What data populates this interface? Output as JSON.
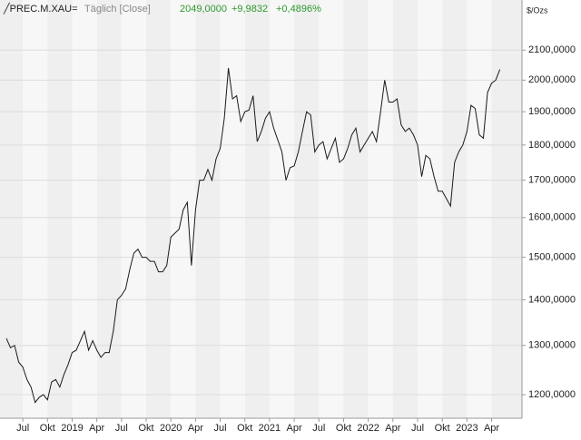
{
  "chart_data": {
    "type": "line",
    "header": {
      "symbol": "╱PREC.M.XAU=",
      "mode": "Täglich [Close]",
      "last": "2049,0000",
      "change": "+9,9832",
      "change_pct": "+0,4896%"
    },
    "unit": "$/Ozs",
    "log_scale": true,
    "grid": true,
    "color": "#1a1a1a",
    "change_color": "#2e9a2e",
    "ylim": [
      1155,
      2278
    ],
    "yticks": [
      {
        "value": 1200,
        "label": "1200,0000"
      },
      {
        "value": 1300,
        "label": "1300,0000"
      },
      {
        "value": 1400,
        "label": "1400,0000"
      },
      {
        "value": 1500,
        "label": "1500,0000"
      },
      {
        "value": 1600,
        "label": "1600,0000"
      },
      {
        "value": 1700,
        "label": "1700,0000"
      },
      {
        "value": 1800,
        "label": "1800,0000"
      },
      {
        "value": 1900,
        "label": "1900,0000"
      },
      {
        "value": 2000,
        "label": "2000,0000"
      },
      {
        "value": 2100,
        "label": "2100,0000"
      }
    ],
    "categories": [
      null,
      null,
      null,
      null,
      "Jul",
      null,
      null,
      null,
      null,
      null,
      "Okt",
      null,
      null,
      null,
      null,
      null,
      "2019",
      null,
      null,
      null,
      null,
      null,
      "Apr",
      null,
      null,
      null,
      null,
      null,
      "Jul",
      null,
      null,
      null,
      null,
      null,
      "Okt",
      null,
      null,
      null,
      null,
      null,
      "2020",
      null,
      null,
      null,
      null,
      null,
      "Apr",
      null,
      null,
      null,
      null,
      null,
      "Jul",
      null,
      null,
      null,
      null,
      null,
      "Okt",
      null,
      null,
      null,
      null,
      null,
      "2021",
      null,
      null,
      null,
      null,
      null,
      "Apr",
      null,
      null,
      null,
      null,
      null,
      "Jul",
      null,
      null,
      null,
      null,
      null,
      "Okt",
      null,
      null,
      null,
      null,
      null,
      "2022",
      null,
      null,
      null,
      null,
      null,
      "Apr",
      null,
      null,
      null,
      null,
      null,
      "Jul",
      null,
      null,
      null,
      null,
      null,
      "Okt",
      null,
      null,
      null,
      null,
      null,
      "2023",
      null,
      null,
      null,
      null,
      null,
      "Apr",
      null,
      null
    ],
    "values": [
      1315,
      1295,
      1300,
      1265,
      1255,
      1230,
      1215,
      1185,
      1195,
      1200,
      1190,
      1225,
      1230,
      1215,
      1240,
      1260,
      1285,
      1290,
      1310,
      1330,
      1290,
      1310,
      1290,
      1275,
      1285,
      1285,
      1330,
      1400,
      1410,
      1425,
      1470,
      1510,
      1520,
      1500,
      1500,
      1490,
      1490,
      1465,
      1465,
      1480,
      1550,
      1560,
      1570,
      1620,
      1640,
      1480,
      1620,
      1700,
      1700,
      1730,
      1700,
      1760,
      1790,
      1880,
      2040,
      1940,
      1950,
      1870,
      1900,
      1905,
      1950,
      1810,
      1840,
      1880,
      1900,
      1850,
      1815,
      1780,
      1700,
      1735,
      1740,
      1780,
      1840,
      1900,
      1890,
      1780,
      1800,
      1810,
      1760,
      1790,
      1820,
      1750,
      1760,
      1790,
      1830,
      1850,
      1780,
      1800,
      1820,
      1840,
      1810,
      1900,
      2000,
      1930,
      1930,
      1940,
      1860,
      1840,
      1850,
      1830,
      1800,
      1710,
      1770,
      1760,
      1710,
      1670,
      1670,
      1650,
      1630,
      1750,
      1780,
      1800,
      1840,
      1920,
      1910,
      1830,
      1820,
      1960,
      1990,
      2000,
      2035
    ]
  }
}
